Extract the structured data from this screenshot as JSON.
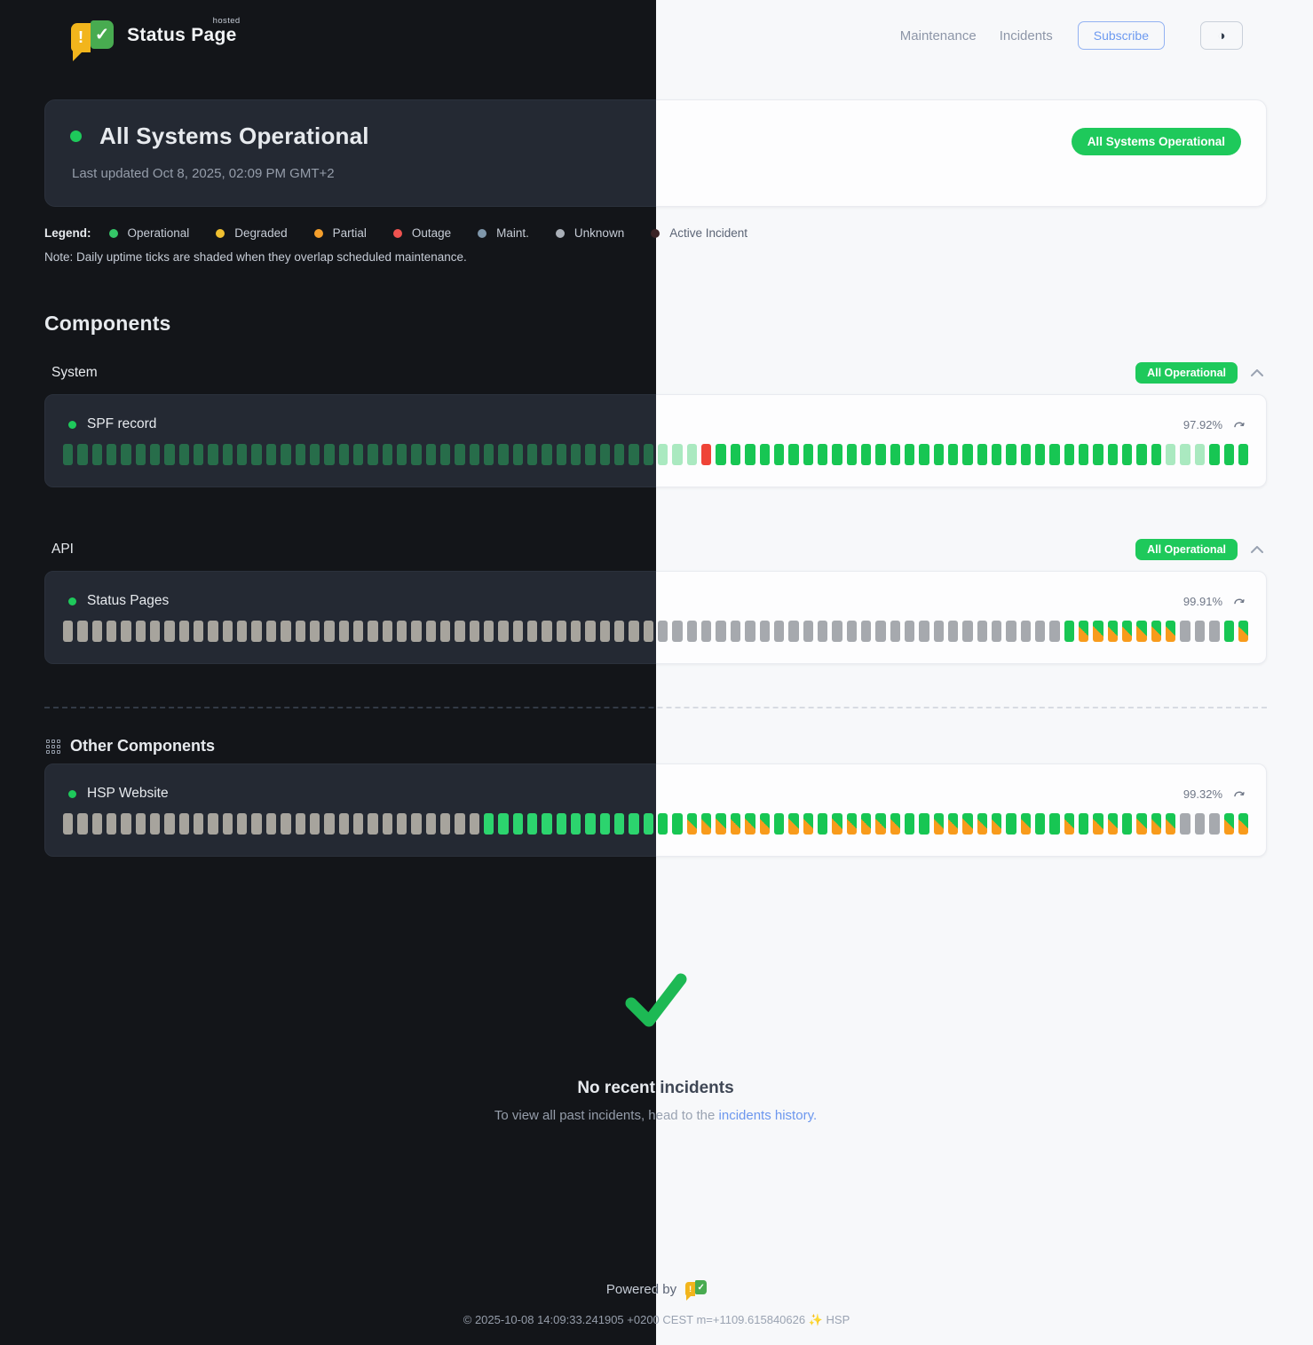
{
  "header": {
    "brand_name": "Status Page",
    "brand_tag": "hosted",
    "nav_items": [
      "Maintenance",
      "Incidents"
    ],
    "subscribe_label": "Subscribe",
    "theme_toggle_glyph": "◑"
  },
  "hero": {
    "title": "All Systems Operational",
    "last_updated": "Last updated Oct 8, 2025, 02:09 PM GMT+2",
    "badge_label": "All Systems Operational",
    "badge_color": "#1ec95b"
  },
  "legend": {
    "label": "Legend:",
    "items": [
      {
        "label": "Operational",
        "color": "#35c768"
      },
      {
        "label": "Degraded",
        "color": "#f0c030"
      },
      {
        "label": "Partial",
        "color": "#f59f2c"
      },
      {
        "label": "Outage",
        "color": "#ef5350"
      },
      {
        "label": "Maint.",
        "color": "#7f97ab"
      },
      {
        "label": "Unknown",
        "color": "#aab0b8"
      },
      {
        "label": "Active Incident",
        "color": "#3a2325"
      }
    ],
    "note": "Note: Daily uptime ticks are shaded when they overlap scheduled maintenance."
  },
  "components": {
    "heading": "Components",
    "groups": [
      {
        "name": "System",
        "badge": "All Operational",
        "items": [
          {
            "name": "SPF record",
            "uptime": "97.92%",
            "ticks": "ssssssssssssssssssssssssssssssssssssssssssssxooooooooooooooooooooooooooooooosssooo"
          }
        ]
      },
      {
        "name": "API",
        "badge": "All Operational",
        "items": [
          {
            "name": "Status Pages",
            "uptime": "99.91%",
            "ticks": "uuuuuuuuuuuuuuuuuuuuuuuuuuuuuuuuuuuuuuuuuuuuuuuuuuuuuuuuuuuuuuuuuuuuuommmmmmmuuuom"
          }
        ]
      }
    ],
    "other_group": {
      "name": "Other Components",
      "items": [
        {
          "name": "HSP Website",
          "uptime": "99.32%",
          "ticks": "uuuuuuuuuuuuuuuuuuuuuuuuuuuuuoooooooooooooommmmmmommommmmmoommmmmomoomommommmuuumm"
        }
      ]
    },
    "tick_legend": {
      "o": "operational",
      "s": "operational-shaded-maintenance",
      "x": "outage",
      "u": "unknown",
      "m": "operational-with-maintenance"
    }
  },
  "incidents": {
    "title": "No recent incidents",
    "subtext_prefix": "To view all past incidents, head to the ",
    "link_label": "incidents history."
  },
  "footer": {
    "powered_by_label": "Powered by",
    "copyright": "© 2025-10-08 14:09:33.241905 +0200 CEST m=+1109.615840626 ✨ HSP"
  },
  "icons": {
    "refresh": "curved-arrow",
    "theme_toggle": "half-filled-circle",
    "group_collapse": "chevron-up",
    "other_components": "grid",
    "logo_left": "exclamation-mark",
    "logo_right": "check-mark"
  }
}
